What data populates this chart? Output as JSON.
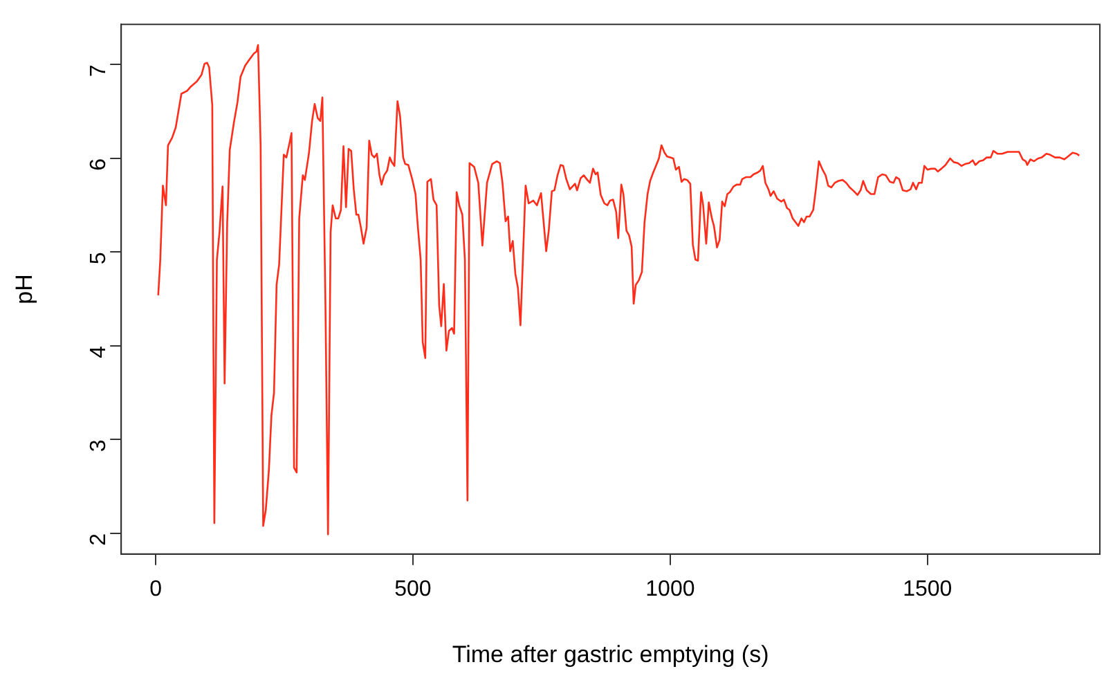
{
  "chart_data": {
    "type": "line",
    "xlabel": "Time after gastric emptying (s)",
    "ylabel": "pH",
    "xlim": [
      -67,
      1835
    ],
    "xticks": [
      0,
      500,
      1000,
      1500
    ],
    "ylim": [
      1.78,
      7.43
    ],
    "yticks": [
      2,
      3,
      4,
      5,
      6,
      7
    ],
    "series": [
      {
        "color": "#ff2d1a",
        "x": [
          5,
          9,
          14,
          20,
          24,
          32,
          39,
          50,
          61,
          69,
          80,
          89,
          95,
          100,
          104,
          110,
          114,
          119,
          124,
          130,
          134,
          139,
          144,
          152,
          159,
          165,
          174,
          183,
          191,
          196,
          199,
          204,
          209,
          214,
          220,
          225,
          230,
          235,
          240,
          249,
          254,
          260,
          264,
          269,
          274,
          279,
          286,
          290,
          298,
          304,
          309,
          315,
          320,
          324,
          330,
          335,
          340,
          344,
          350,
          355,
          360,
          365,
          370,
          375,
          380,
          385,
          390,
          394,
          399,
          404,
          410,
          415,
          420,
          425,
          430,
          435,
          439,
          444,
          450,
          455,
          459,
          464,
          470,
          475,
          481,
          485,
          491,
          499,
          505,
          509,
          515,
          519,
          524,
          528,
          535,
          540,
          546,
          551,
          555,
          560,
          565,
          570,
          576,
          580,
          585,
          590,
          596,
          601,
          606,
          610,
          619,
          627,
          635,
          644,
          654,
          663,
          669,
          674,
          680,
          685,
          689,
          694,
          699,
          704,
          709,
          719,
          725,
          734,
          741,
          749,
          759,
          764,
          770,
          775,
          781,
          787,
          792,
          798,
          805,
          810,
          815,
          819,
          826,
          832,
          839,
          844,
          850,
          855,
          859,
          865,
          872,
          878,
          883,
          889,
          895,
          899,
          905,
          909,
          915,
          920,
          925,
          929,
          933,
          939,
          945,
          950,
          956,
          961,
          967,
          973,
          978,
          983,
          989,
          994,
          1000,
          1006,
          1011,
          1017,
          1022,
          1027,
          1033,
          1039,
          1044,
          1049,
          1054,
          1060,
          1064,
          1070,
          1075,
          1081,
          1085,
          1091,
          1096,
          1101,
          1106,
          1111,
          1116,
          1123,
          1129,
          1136,
          1140,
          1147,
          1156,
          1162,
          1170,
          1175,
          1180,
          1185,
          1191,
          1195,
          1201,
          1208,
          1216,
          1221,
          1227,
          1232,
          1238,
          1245,
          1249,
          1255,
          1260,
          1265,
          1271,
          1278,
          1283,
          1289,
          1296,
          1302,
          1307,
          1313,
          1320,
          1327,
          1335,
          1342,
          1349,
          1357,
          1364,
          1370,
          1375,
          1382,
          1390,
          1397,
          1404,
          1412,
          1419,
          1427,
          1434,
          1439,
          1445,
          1452,
          1460,
          1467,
          1472,
          1478,
          1483,
          1489,
          1494,
          1500,
          1507,
          1515,
          1520,
          1527,
          1535,
          1544,
          1551,
          1559,
          1566,
          1573,
          1581,
          1588,
          1593,
          1601,
          1608,
          1615,
          1623,
          1628,
          1636,
          1645,
          1656,
          1667,
          1678,
          1685,
          1691,
          1694,
          1700,
          1707,
          1715,
          1722,
          1731,
          1738,
          1748,
          1757,
          1766,
          1773,
          1782,
          1790,
          1795
        ],
        "values": [
          4.54,
          4.92,
          5.71,
          5.5,
          6.14,
          6.22,
          6.33,
          6.69,
          6.72,
          6.77,
          6.82,
          6.89,
          7.01,
          7.02,
          6.97,
          6.57,
          2.11,
          4.92,
          5.21,
          5.7,
          3.6,
          5.31,
          6.09,
          6.38,
          6.6,
          6.87,
          6.99,
          7.06,
          7.12,
          7.14,
          7.21,
          6.14,
          2.08,
          2.25,
          2.67,
          3.26,
          3.5,
          4.65,
          4.87,
          6.04,
          6.01,
          6.16,
          6.27,
          2.7,
          2.65,
          5.36,
          5.82,
          5.77,
          6.06,
          6.4,
          6.58,
          6.43,
          6.4,
          6.65,
          4.43,
          1.99,
          5.21,
          5.5,
          5.36,
          5.36,
          5.45,
          6.13,
          5.48,
          6.1,
          6.08,
          5.67,
          5.4,
          5.4,
          5.26,
          5.09,
          5.26,
          6.19,
          6.04,
          6.01,
          6.05,
          5.82,
          5.72,
          5.82,
          5.87,
          6.01,
          5.96,
          5.92,
          6.61,
          6.45,
          6.01,
          5.94,
          5.93,
          5.77,
          5.62,
          5.31,
          4.92,
          4.04,
          3.87,
          5.75,
          5.78,
          5.56,
          5.5,
          4.43,
          4.21,
          4.66,
          3.95,
          4.16,
          4.19,
          4.13,
          5.64,
          5.5,
          5.4,
          4.92,
          2.35,
          5.95,
          5.91,
          5.74,
          5.07,
          5.74,
          5.94,
          5.97,
          5.95,
          5.74,
          5.33,
          5.38,
          5.01,
          5.12,
          4.77,
          4.62,
          4.22,
          5.71,
          5.52,
          5.55,
          5.5,
          5.63,
          5.01,
          5.23,
          5.65,
          5.66,
          5.82,
          5.93,
          5.92,
          5.78,
          5.67,
          5.7,
          5.73,
          5.66,
          5.79,
          5.82,
          5.77,
          5.74,
          5.89,
          5.83,
          5.85,
          5.61,
          5.52,
          5.5,
          5.55,
          5.56,
          5.43,
          5.15,
          5.72,
          5.62,
          5.23,
          5.18,
          5.06,
          4.45,
          4.65,
          4.7,
          4.79,
          5.31,
          5.62,
          5.76,
          5.85,
          5.93,
          6.0,
          6.14,
          6.06,
          6.02,
          6.01,
          6.0,
          5.88,
          5.91,
          5.75,
          5.78,
          5.77,
          5.73,
          5.08,
          4.92,
          4.91,
          5.64,
          5.5,
          5.09,
          5.53,
          5.36,
          5.28,
          5.05,
          5.13,
          5.54,
          5.49,
          5.62,
          5.64,
          5.7,
          5.72,
          5.72,
          5.78,
          5.8,
          5.8,
          5.83,
          5.85,
          5.87,
          5.92,
          5.74,
          5.67,
          5.6,
          5.65,
          5.57,
          5.54,
          5.56,
          5.47,
          5.45,
          5.36,
          5.31,
          5.28,
          5.36,
          5.32,
          5.38,
          5.38,
          5.45,
          5.67,
          5.97,
          5.88,
          5.82,
          5.71,
          5.69,
          5.74,
          5.76,
          5.77,
          5.74,
          5.69,
          5.65,
          5.61,
          5.66,
          5.76,
          5.66,
          5.62,
          5.62,
          5.8,
          5.83,
          5.82,
          5.75,
          5.74,
          5.8,
          5.78,
          5.66,
          5.65,
          5.67,
          5.74,
          5.67,
          5.74,
          5.74,
          5.92,
          5.88,
          5.89,
          5.89,
          5.86,
          5.89,
          5.93,
          6.0,
          5.96,
          5.95,
          5.92,
          5.94,
          5.95,
          5.98,
          5.93,
          5.97,
          5.98,
          6.01,
          6.01,
          6.08,
          6.05,
          6.05,
          6.07,
          6.07,
          6.07,
          5.99,
          5.97,
          5.93,
          5.99,
          5.97,
          6.0,
          6.01,
          6.05,
          6.04,
          6.01,
          6.01,
          5.99,
          6.02,
          6.06,
          6.05,
          6.03
        ]
      }
    ]
  }
}
